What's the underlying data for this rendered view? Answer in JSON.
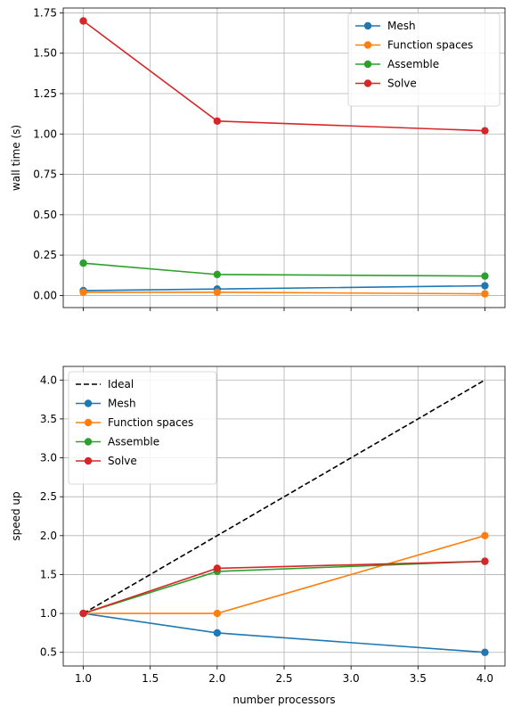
{
  "colors": {
    "Mesh": "#1f77b4",
    "Function spaces": "#ff7f0e",
    "Assemble": "#2ca02c",
    "Solve": "#d62728",
    "Ideal": "#000000",
    "grid": "#b0b0b0"
  },
  "chart_data": [
    {
      "type": "line",
      "x": [
        1,
        2,
        4
      ],
      "xlim": [
        0.85,
        4.15
      ],
      "ylim": [
        -0.075,
        1.78
      ],
      "yticks": [
        0.0,
        0.25,
        0.5,
        0.75,
        1.0,
        1.25,
        1.5,
        1.75
      ],
      "ytick_labels": [
        "0.00",
        "0.25",
        "0.50",
        "0.75",
        "1.00",
        "1.25",
        "1.50",
        "1.75"
      ],
      "xticks": [
        1.0,
        1.5,
        2.0,
        2.5,
        3.0,
        3.5,
        4.0
      ],
      "xtick_labels": [],
      "xlabel": "",
      "ylabel": "wall time (s)",
      "grid": true,
      "legend": "top-right",
      "series": [
        {
          "name": "Mesh",
          "values": [
            0.03,
            0.04,
            0.06
          ],
          "marker": "o"
        },
        {
          "name": "Function spaces",
          "values": [
            0.02,
            0.02,
            0.01
          ],
          "marker": "o"
        },
        {
          "name": "Assemble",
          "values": [
            0.2,
            0.13,
            0.12
          ],
          "marker": "o"
        },
        {
          "name": "Solve",
          "values": [
            1.7,
            1.08,
            1.02
          ],
          "marker": "o"
        }
      ]
    },
    {
      "type": "line",
      "x": [
        1,
        2,
        4
      ],
      "xlim": [
        0.85,
        4.15
      ],
      "ylim": [
        0.325,
        4.175
      ],
      "yticks": [
        0.5,
        1.0,
        1.5,
        2.0,
        2.5,
        3.0,
        3.5,
        4.0
      ],
      "ytick_labels": [
        "0.5",
        "1.0",
        "1.5",
        "2.0",
        "2.5",
        "3.0",
        "3.5",
        "4.0"
      ],
      "xticks": [
        1.0,
        1.5,
        2.0,
        2.5,
        3.0,
        3.5,
        4.0
      ],
      "xtick_labels": [
        "1.0",
        "1.5",
        "2.0",
        "2.5",
        "3.0",
        "3.5",
        "4.0"
      ],
      "xlabel": "number processors",
      "ylabel": "speed up",
      "grid": true,
      "legend": "top-left",
      "series": [
        {
          "name": "Ideal",
          "values": [
            1,
            2,
            4
          ],
          "marker": "none",
          "dash": true
        },
        {
          "name": "Mesh",
          "values": [
            1.0,
            0.75,
            0.5
          ],
          "marker": "o"
        },
        {
          "name": "Function spaces",
          "values": [
            1.0,
            1.0,
            2.0
          ],
          "marker": "o"
        },
        {
          "name": "Assemble",
          "values": [
            1.0,
            1.54,
            1.67
          ],
          "marker": "o"
        },
        {
          "name": "Solve",
          "values": [
            1.0,
            1.58,
            1.67
          ],
          "marker": "o"
        }
      ]
    }
  ]
}
